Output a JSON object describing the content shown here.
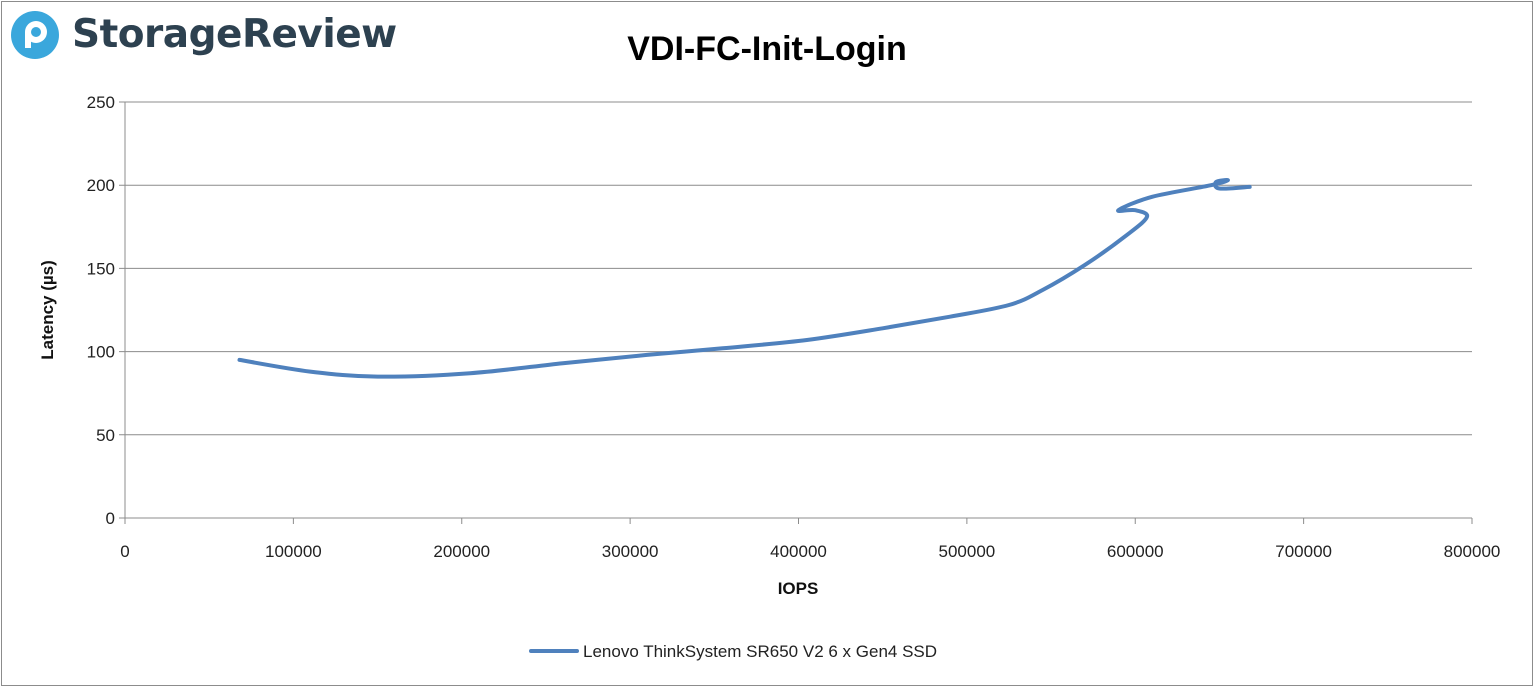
{
  "brand": {
    "name": "StorageReview",
    "logo_icon": "storagereview-logo-icon",
    "text_color": "#2d4150",
    "accent_color": "#3aa7dc"
  },
  "chart_data": {
    "type": "line",
    "title": "VDI-FC-Init-Login",
    "xlabel": "IOPS",
    "ylabel": "Latency (µs)",
    "xlim": [
      0,
      800000
    ],
    "ylim": [
      0,
      250
    ],
    "xticks": [
      "0",
      "100000",
      "200000",
      "300000",
      "400000",
      "500000",
      "600000",
      "700000",
      "800000"
    ],
    "yticks": [
      "0",
      "50",
      "100",
      "150",
      "200",
      "250"
    ],
    "grid": "horizontal",
    "legend_position": "bottom",
    "series": [
      {
        "name": "Lenovo ThinkSystem SR650 V2 6 x Gen4 SSD",
        "color": "#4f81bd",
        "points": [
          [
            68000,
            95
          ],
          [
            110000,
            88
          ],
          [
            150000,
            85
          ],
          [
            205000,
            87
          ],
          [
            260000,
            93
          ],
          [
            310000,
            98
          ],
          [
            355000,
            102
          ],
          [
            405000,
            107
          ],
          [
            450000,
            114
          ],
          [
            490000,
            121
          ],
          [
            525000,
            128
          ],
          [
            545000,
            137
          ],
          [
            570000,
            152
          ],
          [
            595000,
            170
          ],
          [
            607000,
            181
          ],
          [
            600000,
            185
          ],
          [
            590000,
            185
          ],
          [
            610000,
            193
          ],
          [
            645000,
            200
          ],
          [
            655000,
            203
          ],
          [
            648000,
            202
          ],
          [
            650000,
            198
          ],
          [
            668000,
            199
          ]
        ]
      }
    ]
  }
}
